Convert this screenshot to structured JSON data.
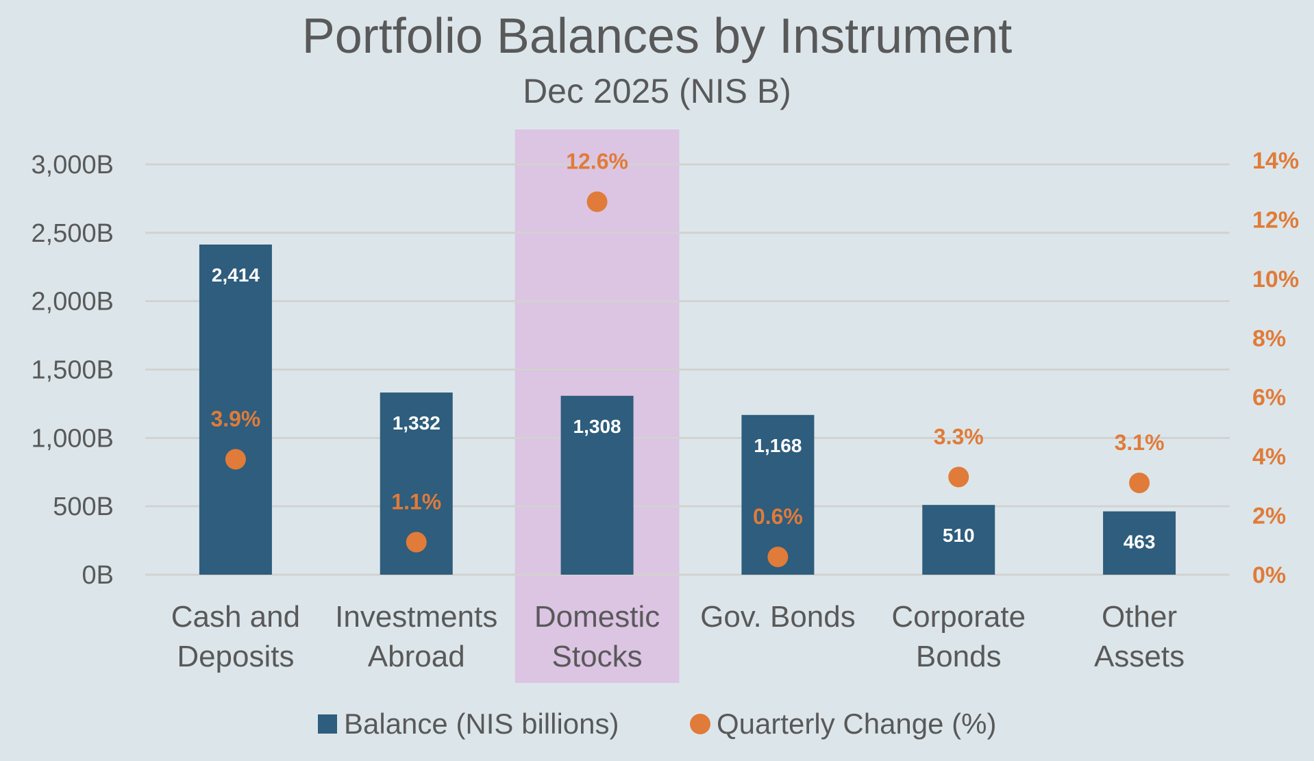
{
  "chart_data": {
    "type": "bar",
    "title": "Portfolio Balances by Instrument",
    "subtitle": "Dec 2025 (NIS B)",
    "categories": [
      [
        "Cash and",
        "Deposits"
      ],
      [
        "Investments",
        "Abroad"
      ],
      [
        "Domestic",
        "Stocks"
      ],
      [
        "Gov. Bonds"
      ],
      [
        "Corporate",
        "Bonds"
      ],
      [
        "Other",
        "Assets"
      ]
    ],
    "highlighted_category": 2,
    "series": [
      {
        "name": "Balance (NIS billions)",
        "type": "bar",
        "axis": "left",
        "values": [
          2414,
          1332,
          1308,
          1168,
          510,
          463
        ],
        "labels": [
          "2,414",
          "1,332",
          "1,308",
          "1,168",
          "510",
          "463"
        ],
        "color": "#2e5d7d"
      },
      {
        "name": "Quarterly Change (%)",
        "type": "scatter",
        "axis": "right",
        "values": [
          3.9,
          1.1,
          12.6,
          0.6,
          3.3,
          3.1
        ],
        "labels": [
          "3.9%",
          "1.1%",
          "12.6%",
          "0.6%",
          "3.3%",
          "3.1%"
        ],
        "color": "#e07b39"
      }
    ],
    "y_left": {
      "ylim": [
        0,
        3250
      ],
      "ticks": [
        0,
        500,
        1000,
        1500,
        2000,
        2500,
        3000
      ],
      "tick_labels": [
        "0B",
        "500B",
        "1,000B",
        "1,500B",
        "2,000B",
        "2,500B",
        "3,000B"
      ]
    },
    "y_right": {
      "ylim": [
        0,
        15.2
      ],
      "ticks": [
        0,
        2,
        4,
        6,
        8,
        10,
        12,
        14
      ],
      "tick_labels": [
        "0%",
        "2%",
        "4%",
        "6%",
        "8%",
        "10%",
        "12%",
        "14%"
      ]
    },
    "grid": true,
    "legend_position": "bottom",
    "colors": {
      "background": "#dce6ea",
      "grid": "#d2d2d2",
      "highlight": "#dcc4e3",
      "text": "#595959"
    }
  }
}
